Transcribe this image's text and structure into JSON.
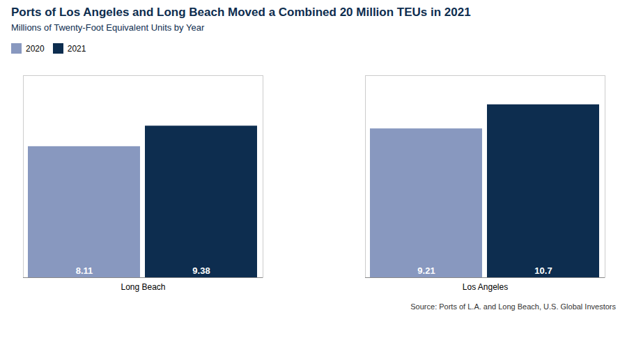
{
  "chart_data": {
    "type": "bar",
    "title": "Ports of Los Angeles and Long Beach Moved a Combined 20 Million TEUs in 2021",
    "subtitle": "Millions of Twenty-Foot Equivalent Units by Year",
    "caption": "Source: Ports of L.A. and Long Beach, U.S. Global Investors",
    "categories": [
      "Long Beach",
      "Los Angeles"
    ],
    "series": [
      {
        "name": "2020",
        "color": "#8898bf",
        "values": [
          8.11,
          9.21
        ]
      },
      {
        "name": "2021",
        "color": "#0d2d4f",
        "values": [
          9.38,
          10.7
        ]
      }
    ],
    "title_color": "#0d2d4f",
    "ylim": [
      0,
      12.5
    ],
    "yticks": [],
    "tick_labels": "x",
    "grid": false,
    "legend": "top",
    "data_labels": true
  }
}
